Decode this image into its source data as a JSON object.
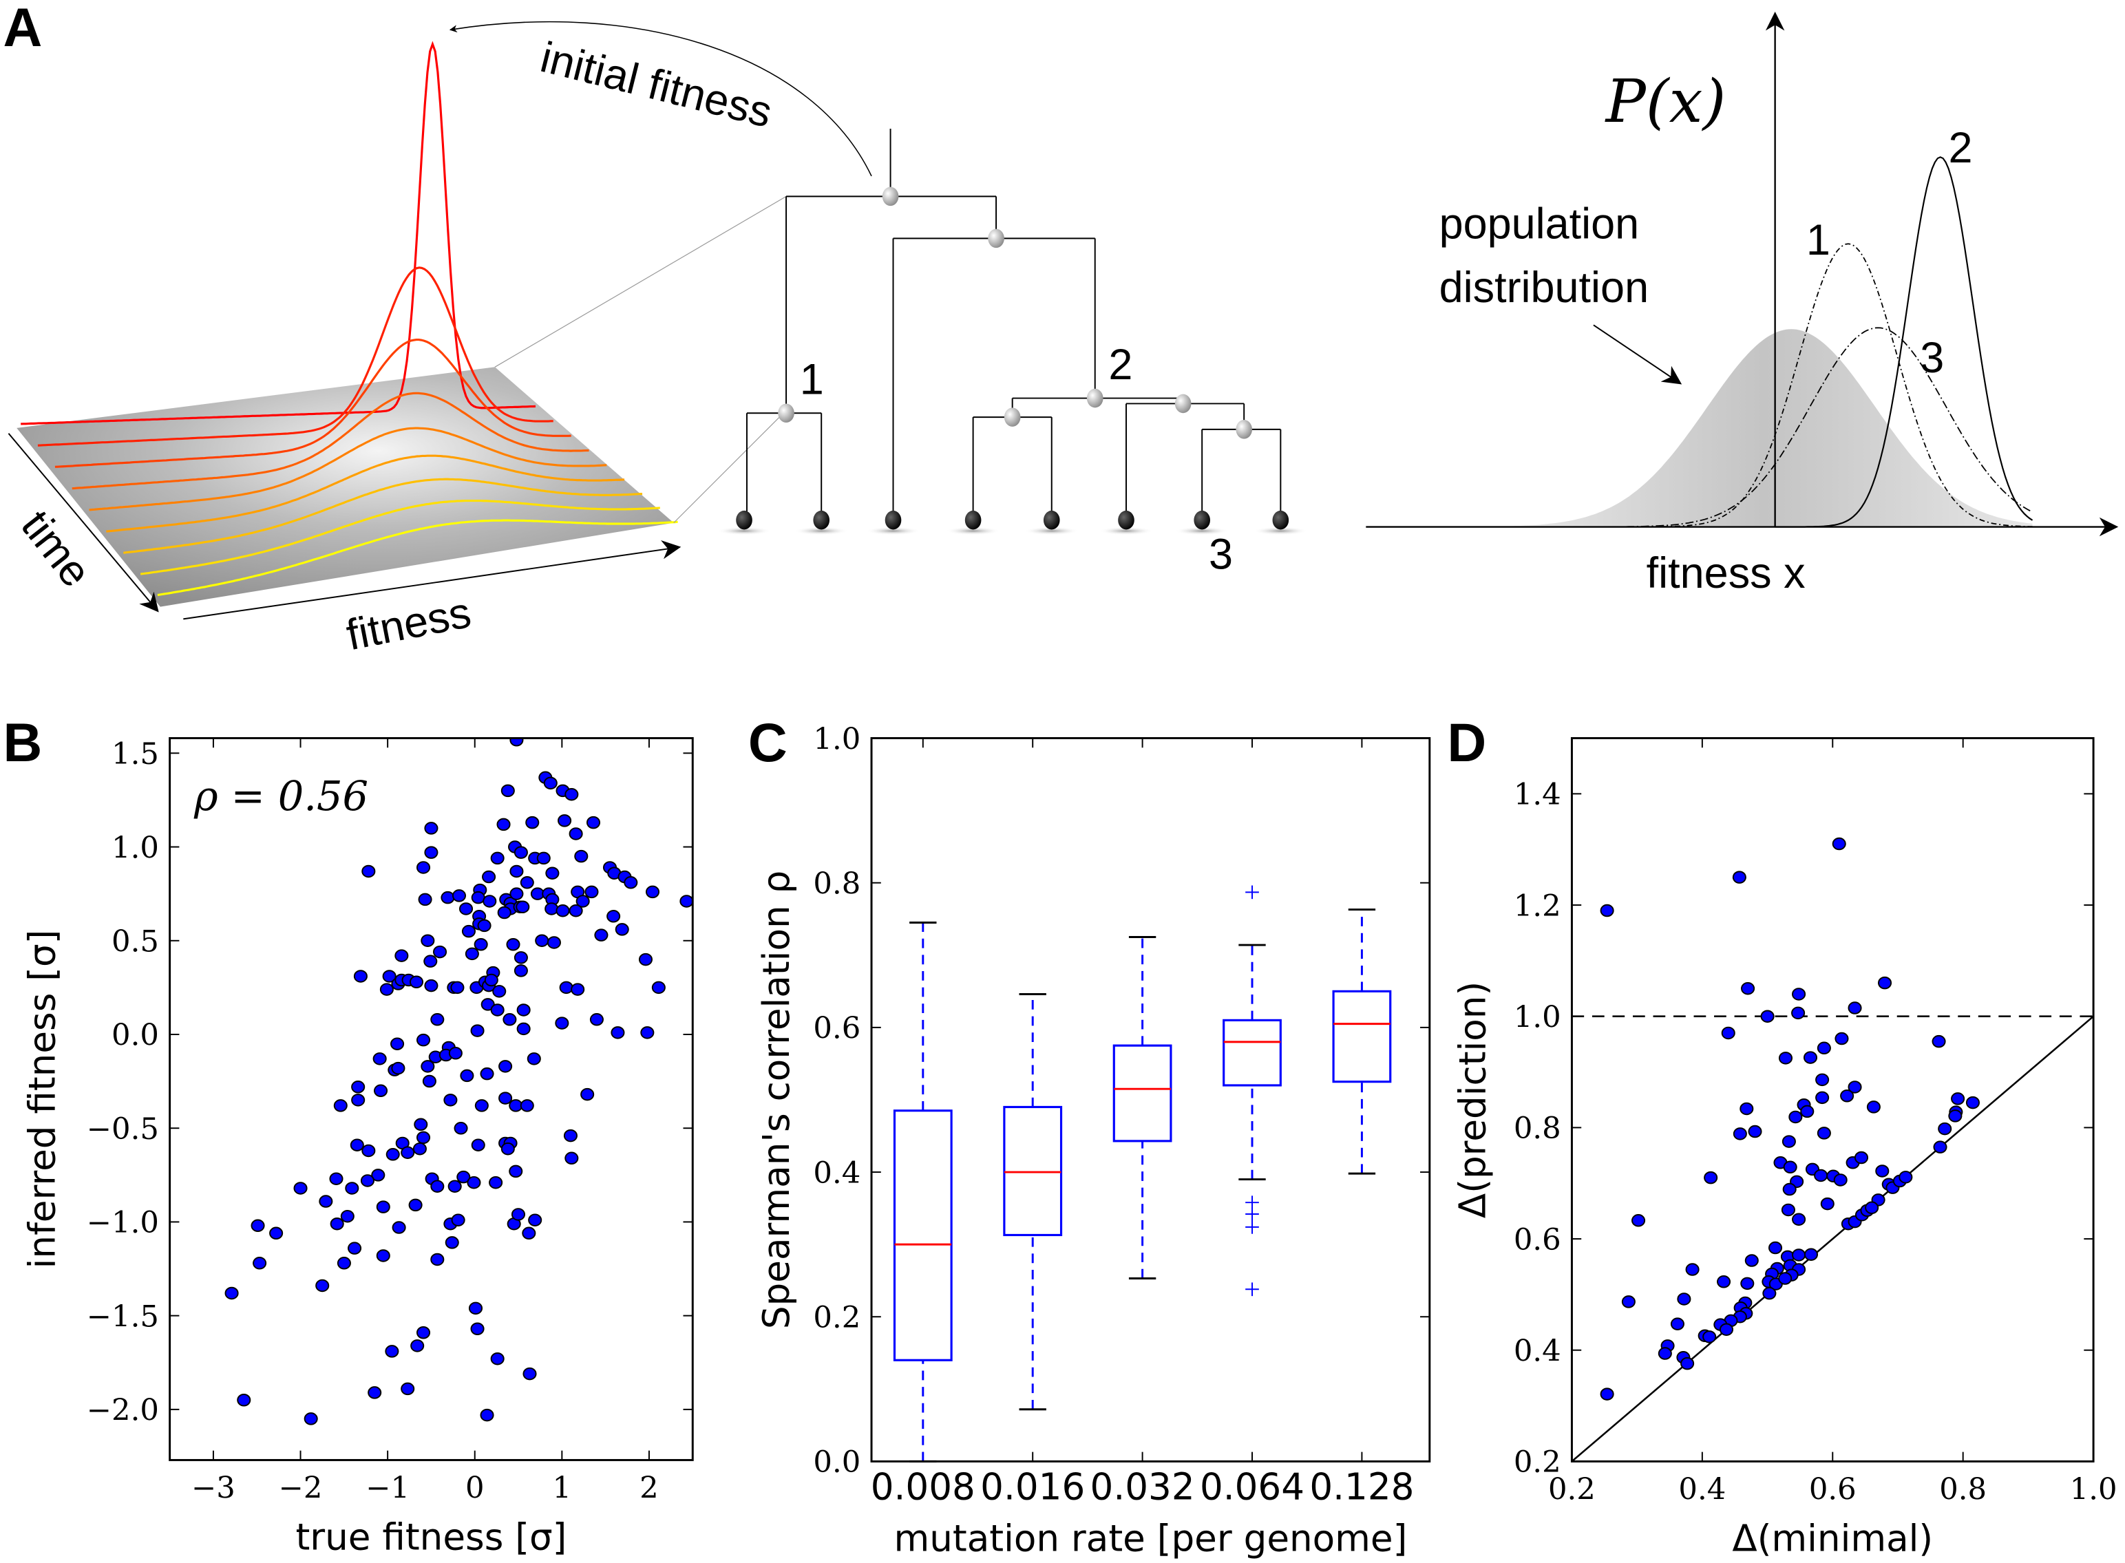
{
  "panel_labels": {
    "a": "A",
    "b": "B",
    "c": "C",
    "d": "D"
  },
  "panel_a": {
    "initial_fitness": "initial fitness",
    "time": "time",
    "fitness": "fitness",
    "tree_labels": [
      "1",
      "2",
      "3"
    ],
    "px_label": "P(x)",
    "population_line1": "population",
    "population_line2": "distribution",
    "fitness_x": "fitness x",
    "curve_labels": [
      "1",
      "2",
      "3"
    ],
    "colors": {
      "surface": "#a8a8a8",
      "early": "#ff0000",
      "late": "#ffff00",
      "node": "#bdbdbd",
      "leaf": "#111111"
    }
  },
  "chart_data": [
    {
      "id": "B",
      "type": "scatter",
      "xlabel": "true fitness [σ]",
      "ylabel": "inferred fitness [σ]",
      "annotation": "ρ = 0.56",
      "xlim": [
        -3.5,
        2.5
      ],
      "ylim": [
        -2.27,
        1.58
      ],
      "xticks": [
        -3,
        -2,
        -1,
        0,
        1,
        2
      ],
      "xtick_labels": [
        "−3",
        "−2",
        "−1",
        "0",
        "1",
        "2"
      ],
      "yticks": [
        -2.0,
        -1.5,
        -1.0,
        -0.5,
        0.0,
        0.5,
        1.0,
        1.5
      ],
      "ytick_labels": [
        "−2.0",
        "−1.5",
        "−1.0",
        "−0.5",
        "0.0",
        "0.5",
        "1.0",
        "1.5"
      ],
      "grid": false,
      "color": "#0000ff",
      "points": [
        [
          0.48,
          1.57
        ],
        [
          0.81,
          1.37
        ],
        [
          0.87,
          1.34
        ],
        [
          0.38,
          1.3
        ],
        [
          1.01,
          1.3
        ],
        [
          1.11,
          1.28
        ],
        [
          -0.5,
          1.1
        ],
        [
          0.33,
          1.12
        ],
        [
          0.66,
          1.13
        ],
        [
          1.03,
          1.14
        ],
        [
          1.36,
          1.13
        ],
        [
          1.16,
          1.07
        ],
        [
          -0.5,
          0.97
        ],
        [
          0.46,
          1.0
        ],
        [
          0.53,
          0.97
        ],
        [
          0.26,
          0.94
        ],
        [
          0.69,
          0.94
        ],
        [
          0.79,
          0.94
        ],
        [
          1.22,
          0.95
        ],
        [
          -1.22,
          0.87
        ],
        [
          -0.59,
          0.89
        ],
        [
          0.48,
          0.87
        ],
        [
          0.89,
          0.86
        ],
        [
          1.55,
          0.89
        ],
        [
          1.6,
          0.86
        ],
        [
          1.72,
          0.84
        ],
        [
          1.79,
          0.81
        ],
        [
          0.16,
          0.84
        ],
        [
          0.6,
          0.81
        ],
        [
          -0.57,
          0.72
        ],
        [
          -0.31,
          0.73
        ],
        [
          -0.18,
          0.74
        ],
        [
          0.06,
          0.77
        ],
        [
          0.04,
          0.73
        ],
        [
          0.17,
          0.71
        ],
        [
          0.36,
          0.72
        ],
        [
          0.41,
          0.7
        ],
        [
          0.48,
          0.75
        ],
        [
          0.41,
          0.67
        ],
        [
          0.52,
          0.68
        ],
        [
          0.55,
          0.68
        ],
        [
          0.72,
          0.75
        ],
        [
          0.85,
          0.75
        ],
        [
          0.89,
          0.72
        ],
        [
          0.88,
          0.67
        ],
        [
          1.01,
          0.66
        ],
        [
          1.18,
          0.76
        ],
        [
          1.24,
          0.71
        ],
        [
          1.16,
          0.66
        ],
        [
          1.34,
          0.76
        ],
        [
          2.43,
          0.71
        ],
        [
          2.04,
          0.76
        ],
        [
          -0.1,
          0.67
        ],
        [
          0.05,
          0.63
        ],
        [
          0.05,
          0.59
        ],
        [
          0.11,
          0.58
        ],
        [
          0.34,
          0.65
        ],
        [
          -0.07,
          0.55
        ],
        [
          1.59,
          0.63
        ],
        [
          1.69,
          0.56
        ],
        [
          1.45,
          0.53
        ],
        [
          -0.54,
          0.5
        ],
        [
          0.77,
          0.5
        ],
        [
          0.91,
          0.49
        ],
        [
          0.07,
          0.48
        ],
        [
          0.44,
          0.48
        ],
        [
          -0.84,
          0.42
        ],
        [
          -0.4,
          0.44
        ],
        [
          -0.51,
          0.39
        ],
        [
          -0.03,
          0.43
        ],
        [
          0.53,
          0.41
        ],
        [
          1.96,
          0.4
        ],
        [
          0.21,
          0.33
        ],
        [
          0.53,
          0.34
        ],
        [
          -1.31,
          0.31
        ],
        [
          -0.98,
          0.31
        ],
        [
          -1.01,
          0.24
        ],
        [
          -0.88,
          0.27
        ],
        [
          -0.84,
          0.29
        ],
        [
          -0.76,
          0.29
        ],
        [
          -0.67,
          0.28
        ],
        [
          -0.5,
          0.26
        ],
        [
          -0.24,
          0.25
        ],
        [
          -0.2,
          0.25
        ],
        [
          0.02,
          0.25
        ],
        [
          0.12,
          0.28
        ],
        [
          0.16,
          0.26
        ],
        [
          0.19,
          0.29
        ],
        [
          0.28,
          0.23
        ],
        [
          1.05,
          0.25
        ],
        [
          1.18,
          0.24
        ],
        [
          2.11,
          0.25
        ],
        [
          0.15,
          0.16
        ],
        [
          0.26,
          0.13
        ],
        [
          0.56,
          0.13
        ],
        [
          -0.43,
          0.08
        ],
        [
          0.4,
          0.08
        ],
        [
          1.0,
          0.06
        ],
        [
          1.4,
          0.08
        ],
        [
          0.03,
          0.02
        ],
        [
          0.56,
          0.03
        ],
        [
          1.64,
          0.01
        ],
        [
          1.98,
          0.01
        ],
        [
          -0.59,
          -0.03
        ],
        [
          -0.89,
          -0.05
        ],
        [
          -0.3,
          -0.07
        ],
        [
          -1.09,
          -0.13
        ],
        [
          -0.45,
          -0.12
        ],
        [
          -0.33,
          -0.11
        ],
        [
          -0.22,
          -0.1
        ],
        [
          0.68,
          -0.13
        ],
        [
          -0.92,
          -0.19
        ],
        [
          -0.88,
          -0.18
        ],
        [
          -0.54,
          -0.17
        ],
        [
          -0.09,
          -0.22
        ],
        [
          0.14,
          -0.21
        ],
        [
          0.35,
          -0.17
        ],
        [
          -0.52,
          -0.25
        ],
        [
          -1.34,
          -0.28
        ],
        [
          -1.08,
          -0.3
        ],
        [
          1.29,
          -0.32
        ],
        [
          -1.34,
          -0.35
        ],
        [
          -0.28,
          -0.35
        ],
        [
          0.35,
          -0.34
        ],
        [
          -1.54,
          -0.38
        ],
        [
          0.08,
          -0.38
        ],
        [
          0.47,
          -0.38
        ],
        [
          0.6,
          -0.38
        ],
        [
          -0.62,
          -0.48
        ],
        [
          -0.16,
          -0.5
        ],
        [
          -0.59,
          -0.55
        ],
        [
          1.1,
          -0.54
        ],
        [
          -1.35,
          -0.59
        ],
        [
          -1.22,
          -0.62
        ],
        [
          -0.83,
          -0.58
        ],
        [
          -0.77,
          -0.63
        ],
        [
          -0.94,
          -0.64
        ],
        [
          -0.63,
          -0.61
        ],
        [
          0.04,
          -0.59
        ],
        [
          0.35,
          -0.58
        ],
        [
          0.41,
          -0.58
        ],
        [
          0.38,
          -0.61
        ],
        [
          1.11,
          -0.66
        ],
        [
          0.47,
          -0.73
        ],
        [
          -1.11,
          -0.75
        ],
        [
          -1.23,
          -0.78
        ],
        [
          -1.59,
          -0.77
        ],
        [
          -0.49,
          -0.77
        ],
        [
          -0.43,
          -0.81
        ],
        [
          -0.23,
          -0.81
        ],
        [
          -0.13,
          -0.76
        ],
        [
          -0.01,
          -0.79
        ],
        [
          0.24,
          -0.79
        ],
        [
          -2.0,
          -0.82
        ],
        [
          -1.41,
          -0.82
        ],
        [
          -1.71,
          -0.89
        ],
        [
          -1.05,
          -0.92
        ],
        [
          -0.68,
          -0.91
        ],
        [
          -1.46,
          -0.97
        ],
        [
          -1.58,
          -1.01
        ],
        [
          -0.87,
          -1.03
        ],
        [
          -0.28,
          -1.01
        ],
        [
          -0.19,
          -0.99
        ],
        [
          0.45,
          -1.01
        ],
        [
          0.5,
          -0.96
        ],
        [
          0.69,
          -0.99
        ],
        [
          0.62,
          -1.06
        ],
        [
          -2.49,
          -1.02
        ],
        [
          -2.28,
          -1.06
        ],
        [
          -0.26,
          -1.11
        ],
        [
          -1.38,
          -1.14
        ],
        [
          -2.47,
          -1.22
        ],
        [
          -1.5,
          -1.22
        ],
        [
          -1.05,
          -1.18
        ],
        [
          -0.43,
          -1.2
        ],
        [
          -1.75,
          -1.34
        ],
        [
          -2.79,
          -1.38
        ],
        [
          0.01,
          -1.46
        ],
        [
          0.03,
          -1.57
        ],
        [
          -0.59,
          -1.59
        ],
        [
          -0.66,
          -1.66
        ],
        [
          -0.95,
          -1.69
        ],
        [
          0.26,
          -1.73
        ],
        [
          0.63,
          -1.81
        ],
        [
          -1.15,
          -1.91
        ],
        [
          -0.77,
          -1.89
        ],
        [
          -2.65,
          -1.95
        ],
        [
          -1.88,
          -2.05
        ],
        [
          0.14,
          -2.03
        ]
      ]
    },
    {
      "id": "C",
      "type": "box",
      "xlabel": "mutation rate [per genome]",
      "ylabel": "Spearman's correlation ρ",
      "ylim": [
        0.0,
        1.0
      ],
      "yticks": [
        0.0,
        0.2,
        0.4,
        0.6,
        0.8,
        1.0
      ],
      "ytick_labels": [
        "0.0",
        "0.2",
        "0.4",
        "0.6",
        "0.8",
        "1.0"
      ],
      "categories": [
        "0.008",
        "0.016",
        "0.032",
        "0.064",
        "0.128"
      ],
      "colors": {
        "box": "#0000ff",
        "median": "#ff0000",
        "cap": "#000000"
      },
      "boxes": [
        {
          "whisker_low": 0.0,
          "q1": 0.14,
          "median": 0.3,
          "q3": 0.485,
          "whisker_high": 0.745,
          "outliers": []
        },
        {
          "whisker_low": 0.072,
          "q1": 0.313,
          "median": 0.4,
          "q3": 0.49,
          "whisker_high": 0.646,
          "outliers": []
        },
        {
          "whisker_low": 0.253,
          "q1": 0.443,
          "median": 0.515,
          "q3": 0.575,
          "whisker_high": 0.725,
          "outliers": []
        },
        {
          "whisker_low": 0.39,
          "q1": 0.52,
          "median": 0.58,
          "q3": 0.61,
          "whisker_high": 0.714,
          "outliers": [
            0.787,
            0.358,
            0.342,
            0.324,
            0.238
          ]
        },
        {
          "whisker_low": 0.398,
          "q1": 0.525,
          "median": 0.605,
          "q3": 0.65,
          "whisker_high": 0.763,
          "outliers": []
        }
      ]
    },
    {
      "id": "D",
      "type": "scatter",
      "xlabel": "Δ(minimal)",
      "ylabel": "Δ(prediction)",
      "xlim": [
        0.2,
        1.0
      ],
      "ylim": [
        0.2,
        1.5
      ],
      "xticks": [
        0.2,
        0.4,
        0.6,
        0.8,
        1.0
      ],
      "xtick_labels": [
        "0.2",
        "0.4",
        "0.6",
        "0.8",
        "1.0"
      ],
      "yticks": [
        0.2,
        0.4,
        0.6,
        0.8,
        1.0,
        1.2,
        1.4
      ],
      "ytick_labels": [
        "0.2",
        "0.4",
        "0.6",
        "0.8",
        "1.0",
        "1.2",
        "1.4"
      ],
      "grid": false,
      "reference_lines": {
        "horizontal_dashed": 1.0,
        "diagonal": "y = x"
      },
      "color": "#0000ff",
      "points": [
        [
          0.61,
          1.31
        ],
        [
          0.457,
          1.25
        ],
        [
          0.254,
          1.19
        ],
        [
          0.68,
          1.06
        ],
        [
          0.47,
          1.05
        ],
        [
          0.548,
          1.04
        ],
        [
          0.634,
          1.015
        ],
        [
          0.547,
          1.006
        ],
        [
          0.5,
          1.0
        ],
        [
          0.44,
          0.97
        ],
        [
          0.614,
          0.96
        ],
        [
          0.763,
          0.955
        ],
        [
          0.528,
          0.925
        ],
        [
          0.566,
          0.926
        ],
        [
          0.587,
          0.943
        ],
        [
          0.584,
          0.886
        ],
        [
          0.634,
          0.873
        ],
        [
          0.584,
          0.854
        ],
        [
          0.622,
          0.857
        ],
        [
          0.792,
          0.852
        ],
        [
          0.815,
          0.845
        ],
        [
          0.468,
          0.834
        ],
        [
          0.556,
          0.841
        ],
        [
          0.561,
          0.829
        ],
        [
          0.543,
          0.819
        ],
        [
          0.663,
          0.837
        ],
        [
          0.789,
          0.828
        ],
        [
          0.788,
          0.821
        ],
        [
          0.458,
          0.789
        ],
        [
          0.481,
          0.793
        ],
        [
          0.587,
          0.79
        ],
        [
          0.533,
          0.775
        ],
        [
          0.772,
          0.798
        ],
        [
          0.765,
          0.765
        ],
        [
          0.413,
          0.71
        ],
        [
          0.52,
          0.737
        ],
        [
          0.535,
          0.729
        ],
        [
          0.631,
          0.737
        ],
        [
          0.644,
          0.746
        ],
        [
          0.569,
          0.725
        ],
        [
          0.582,
          0.714
        ],
        [
          0.601,
          0.713
        ],
        [
          0.612,
          0.706
        ],
        [
          0.545,
          0.703
        ],
        [
          0.534,
          0.689
        ],
        [
          0.676,
          0.722
        ],
        [
          0.686,
          0.698
        ],
        [
          0.692,
          0.692
        ],
        [
          0.703,
          0.704
        ],
        [
          0.712,
          0.711
        ],
        [
          0.67,
          0.67
        ],
        [
          0.302,
          0.633
        ],
        [
          0.532,
          0.652
        ],
        [
          0.592,
          0.663
        ],
        [
          0.548,
          0.635
        ],
        [
          0.624,
          0.627
        ],
        [
          0.634,
          0.631
        ],
        [
          0.645,
          0.643
        ],
        [
          0.653,
          0.651
        ],
        [
          0.66,
          0.656
        ],
        [
          0.512,
          0.584
        ],
        [
          0.531,
          0.568
        ],
        [
          0.548,
          0.571
        ],
        [
          0.567,
          0.572
        ],
        [
          0.476,
          0.561
        ],
        [
          0.385,
          0.545
        ],
        [
          0.535,
          0.552
        ],
        [
          0.515,
          0.547
        ],
        [
          0.548,
          0.545
        ],
        [
          0.507,
          0.537
        ],
        [
          0.537,
          0.535
        ],
        [
          0.433,
          0.523
        ],
        [
          0.469,
          0.52
        ],
        [
          0.502,
          0.523
        ],
        [
          0.513,
          0.519
        ],
        [
          0.527,
          0.529
        ],
        [
          0.287,
          0.487
        ],
        [
          0.372,
          0.492
        ],
        [
          0.466,
          0.485
        ],
        [
          0.503,
          0.502
        ],
        [
          0.459,
          0.476
        ],
        [
          0.467,
          0.466
        ],
        [
          0.458,
          0.46
        ],
        [
          0.444,
          0.453
        ],
        [
          0.428,
          0.446
        ],
        [
          0.437,
          0.437
        ],
        [
          0.362,
          0.447
        ],
        [
          0.404,
          0.426
        ],
        [
          0.411,
          0.424
        ],
        [
          0.347,
          0.408
        ],
        [
          0.343,
          0.394
        ],
        [
          0.371,
          0.387
        ],
        [
          0.377,
          0.376
        ],
        [
          0.254,
          0.321
        ]
      ]
    }
  ]
}
